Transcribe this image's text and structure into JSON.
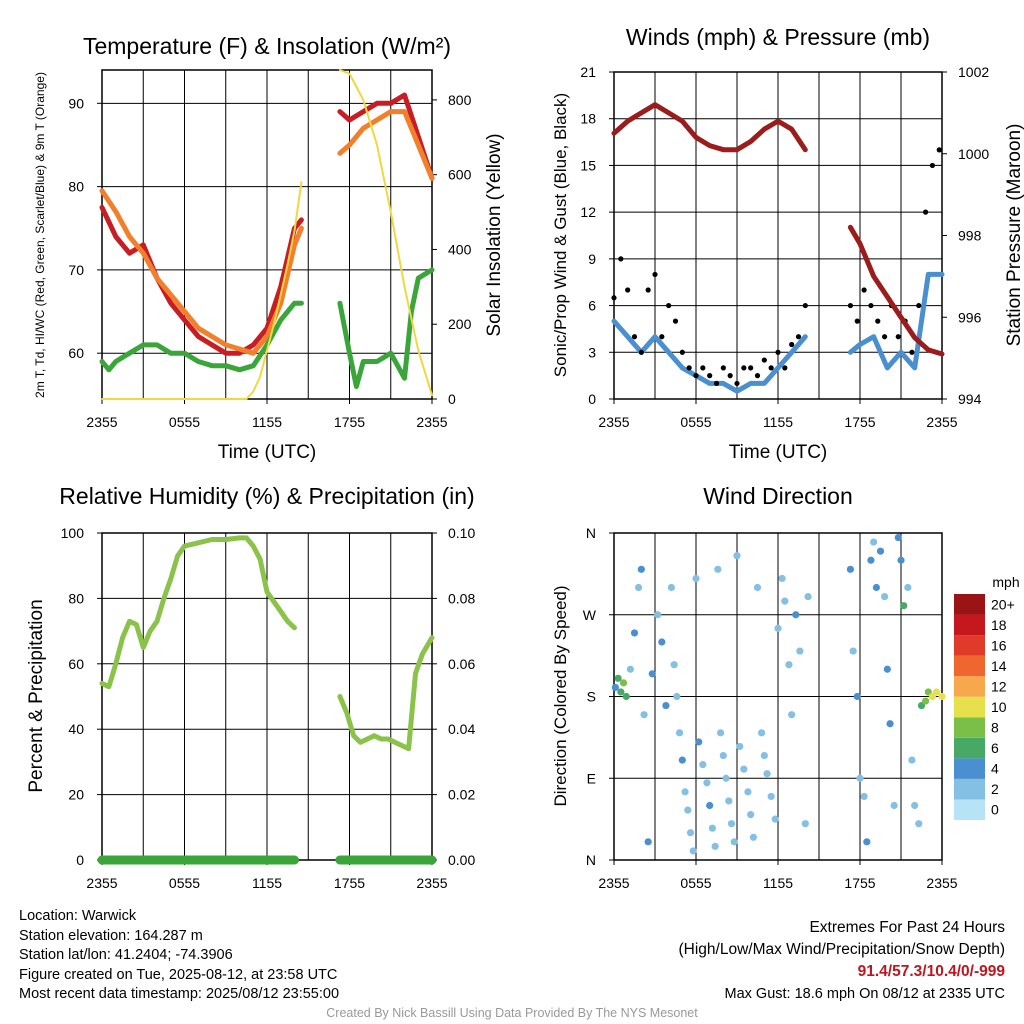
{
  "time_ticks": [
    "2355",
    "0555",
    "1155",
    "1755",
    "2355"
  ],
  "panel_temp": {
    "title": "Temperature (F) & Insolation (W/m²)",
    "xlabel": "Time (UTC)",
    "ylabel_left": "2m T, Td, HI/WC (Red, Green, Scarlet/Blue) & 9m T (Orange)",
    "ylabel_right": "Solar Insolation (Yellow)"
  },
  "panel_wind": {
    "title": "Winds (mph) & Pressure (mb)",
    "xlabel": "Time (UTC)",
    "ylabel_left": "Sonic/Prop Wind & Gust (Blue, Black)",
    "ylabel_right": "Station Pressure (Maroon)"
  },
  "panel_rh": {
    "title": "Relative Humidity (%) & Precipitation (in)",
    "ylabel_left": "Percent & Precipitation"
  },
  "panel_dir": {
    "title": "Wind Direction",
    "ylabel_left": "Direction (Colored By Speed)",
    "colorbar_title": "mph"
  },
  "info": {
    "location": "Location: Warwick",
    "elevation": "Station elevation: 164.287 m",
    "latlon": "Station lat/lon: 41.2404; -74.3906",
    "created": "Figure created on Tue, 2025-08-12, at 23:58 UTC",
    "recent": "Most recent data timestamp: 2025/08/12 23:55:00",
    "extremes_title": "Extremes For Past 24 Hours",
    "extremes_legend": "(High/Low/Max Wind/Precipitation/Snow Depth)",
    "extremes_values": "91.4/57.3/10.4/0/-999",
    "max_gust": "Max Gust: 18.6 mph On 08/12 at 2335 UTC",
    "credit": "Created By Nick Bassill Using Data Provided By The NYS Mesonet"
  },
  "chart_data": [
    {
      "type": "line",
      "title": "Temperature (F) & Insolation (W/m²)",
      "xlabel": "Time (UTC)",
      "ylabel": "2m T, Td, HI/WC (Red, Green, Scarlet/Blue) & 9m T (Orange)",
      "y2label": "Solar Insolation (Yellow)",
      "x_ticks": [
        "2355",
        "0555",
        "1155",
        "1755",
        "2355"
      ],
      "ylim": [
        54.5,
        94
      ],
      "y_ticks": [
        60,
        70,
        80,
        90
      ],
      "y2lim": [
        0,
        880
      ],
      "y2_ticks": [
        0,
        200,
        400,
        600,
        800
      ],
      "grid": true,
      "series": [
        {
          "color": "#c71d23",
          "axis": "left",
          "gaps_after_hour": 14,
          "x": [
            0,
            1,
            2,
            3,
            4,
            5,
            6,
            7,
            8,
            9,
            10,
            11,
            12,
            13,
            14,
            14.5,
            17.3,
            18,
            19,
            20,
            21,
            22,
            23,
            24
          ],
          "y": [
            77.5,
            74,
            72,
            73,
            69,
            66,
            64,
            62,
            61,
            60,
            60,
            61,
            63,
            68,
            75,
            76,
            89,
            88,
            89,
            90,
            90,
            91,
            86,
            81
          ]
        },
        {
          "color": "#f27f2b",
          "axis": "left",
          "gaps_after_hour": 14,
          "x": [
            0,
            1,
            2,
            3,
            4,
            5,
            6,
            7,
            8,
            9,
            10,
            11,
            12,
            13,
            14,
            14.5,
            17.3,
            18,
            19,
            20,
            21,
            22,
            23,
            24
          ],
          "y": [
            79.5,
            77,
            74,
            72,
            69,
            67,
            65,
            63,
            62,
            61,
            60.5,
            60,
            62,
            66,
            73,
            75,
            84,
            85,
            87,
            88,
            89,
            89,
            85,
            81
          ]
        },
        {
          "color": "#3aa63a",
          "axis": "left",
          "gaps_after_hour": 14,
          "x": [
            0,
            0.5,
            1,
            2,
            3,
            4,
            5,
            6,
            7,
            8,
            9,
            10,
            11,
            12,
            13,
            14,
            14.5,
            17.3,
            18,
            18.5,
            19,
            20,
            21,
            22,
            22.5,
            23,
            24
          ],
          "y": [
            59,
            58,
            59,
            60,
            61,
            61,
            60,
            60,
            59,
            58.5,
            58.5,
            58,
            58.5,
            61,
            64,
            66,
            66,
            66,
            60,
            56,
            59,
            59,
            60,
            57,
            65,
            69,
            70
          ]
        },
        {
          "color": "#f0d840",
          "axis": "right",
          "gaps_after_hour": 14,
          "x": [
            0,
            6,
            10.5,
            11,
            11.5,
            12,
            12.5,
            13,
            13.5,
            14,
            14.5,
            17.3,
            18,
            19,
            20,
            21,
            22,
            23,
            24
          ],
          "y": [
            0,
            0,
            0,
            20,
            60,
            130,
            200,
            280,
            360,
            450,
            580,
            880,
            870,
            800,
            680,
            500,
            300,
            130,
            10
          ]
        }
      ]
    },
    {
      "type": "line",
      "title": "Winds (mph) & Pressure (mb)",
      "xlabel": "Time (UTC)",
      "ylabel": "Sonic/Prop Wind & Gust (Blue, Black)",
      "y2label": "Station Pressure (Maroon)",
      "x_ticks": [
        "2355",
        "0555",
        "1155",
        "1755",
        "2355"
      ],
      "ylim": [
        0,
        21
      ],
      "y_ticks": [
        0,
        3,
        6,
        9,
        12,
        15,
        18,
        21
      ],
      "y2lim": [
        994,
        1002
      ],
      "y2_ticks": [
        994,
        996,
        998,
        1000,
        1002
      ],
      "grid": true,
      "series": [
        {
          "color": "#4a90d0",
          "axis": "left",
          "gaps_after_hour": 14,
          "x": [
            0,
            1,
            2,
            3,
            4,
            5,
            6,
            7,
            8,
            9,
            10,
            11,
            12,
            13,
            14,
            17.3,
            18,
            19,
            20,
            21,
            22,
            23,
            24
          ],
          "y": [
            5,
            4,
            3,
            4,
            3,
            2,
            1.5,
            1,
            1,
            0.5,
            1,
            1,
            2,
            3,
            4,
            3,
            3.5,
            4,
            2,
            3,
            2,
            8,
            8
          ]
        },
        {
          "color": "#000000",
          "axis": "left",
          "type": "scatter",
          "gaps_after_hour": 14,
          "x": [
            0,
            0.5,
            1,
            1.5,
            2,
            2.5,
            3,
            3.5,
            4,
            4.5,
            5,
            5.5,
            6,
            6.5,
            7,
            7.5,
            8,
            8.5,
            9,
            9.5,
            10,
            10.5,
            11,
            11.5,
            12,
            12.5,
            13,
            13.5,
            14,
            17.3,
            17.8,
            18.3,
            18.8,
            19.3,
            19.8,
            20.3,
            20.8,
            21.3,
            21.8,
            22.3,
            22.8,
            23.3,
            23.8
          ],
          "y": [
            6.5,
            9,
            7,
            4,
            3,
            7,
            8,
            4,
            6,
            5,
            3,
            2,
            1.5,
            2,
            1.5,
            1,
            2,
            1.5,
            1,
            2,
            2,
            1.5,
            2.5,
            2,
            3,
            2,
            3.5,
            4,
            6,
            6,
            5,
            7,
            6,
            5,
            4,
            6,
            4,
            5,
            3,
            6,
            12,
            15,
            16
          ]
        },
        {
          "color": "#9b1c1c",
          "axis": "right",
          "gaps_after_hour": 14,
          "x": [
            0,
            1,
            2,
            3,
            4,
            5,
            6,
            7,
            8,
            9,
            10,
            11,
            12,
            13,
            14,
            17.3,
            18,
            19,
            20,
            21,
            22,
            23,
            24
          ],
          "y": [
            1000.5,
            1000.8,
            1001,
            1001.2,
            1001,
            1000.8,
            1000.4,
            1000.2,
            1000.1,
            1000.1,
            1000.3,
            1000.6,
            1000.8,
            1000.6,
            1000.1,
            998.2,
            997.8,
            997,
            996.5,
            996,
            995.5,
            995.2,
            995.1
          ]
        }
      ]
    },
    {
      "type": "line",
      "title": "Relative Humidity (%) & Precipitation (in)",
      "ylabel": "Percent & Precipitation",
      "x_ticks": [
        "2355",
        "0555",
        "1155",
        "1755",
        "2355"
      ],
      "ylim": [
        0,
        100
      ],
      "y_ticks": [
        0,
        20,
        40,
        60,
        80,
        100
      ],
      "y2lim": [
        0,
        0.1
      ],
      "y2_ticks": [
        0.0,
        0.02,
        0.04,
        0.06,
        0.08,
        0.1
      ],
      "grid": true,
      "series": [
        {
          "color": "#8bc34a",
          "axis": "left",
          "gaps_after_hour": 14,
          "x": [
            0,
            0.5,
            1,
            1.5,
            2,
            2.5,
            3,
            3.5,
            4,
            4.5,
            5,
            5.5,
            6,
            7,
            8,
            9,
            10,
            10.5,
            11,
            11.5,
            12,
            12.5,
            13,
            13.5,
            14,
            17.3,
            17.8,
            18.3,
            18.8,
            19.3,
            19.8,
            20.3,
            20.8,
            21.3,
            21.8,
            22.3,
            22.8,
            23.3,
            24
          ],
          "y": [
            54,
            53,
            60,
            68,
            73,
            72,
            65,
            70,
            73,
            80,
            86,
            93,
            96,
            97,
            98,
            98,
            98.5,
            98.5,
            96,
            92,
            82,
            79,
            76,
            73,
            71,
            50,
            45,
            38,
            36,
            37,
            38,
            37,
            37,
            36,
            35,
            34,
            57,
            63,
            68
          ]
        },
        {
          "color": "#3aa63a",
          "axis": "left",
          "gaps_after_hour": 14,
          "x": [
            0,
            14,
            17.3,
            24
          ],
          "y": [
            0,
            0,
            0,
            0
          ]
        }
      ]
    },
    {
      "type": "scatter",
      "title": "Wind Direction",
      "ylabel": "Direction (Colored By Speed)",
      "x_ticks": [
        "2355",
        "0555",
        "1155",
        "1755",
        "2355"
      ],
      "y_ticks": [
        "N",
        "E",
        "S",
        "W",
        "N"
      ],
      "ylim": [
        0,
        360
      ],
      "grid": true,
      "colorbar": {
        "title": "mph",
        "labels": [
          "0",
          "2",
          "4",
          "6",
          "8",
          "10",
          "12",
          "14",
          "16",
          "18",
          "20+"
        ],
        "colors": [
          "#b8e2f6",
          "#84bfe4",
          "#4a90d0",
          "#48a866",
          "#7cbf48",
          "#e6e04c",
          "#f8a84c",
          "#f06630",
          "#e03a2a",
          "#c4181e",
          "#9a1416"
        ]
      },
      "points": [
        [
          0.1,
          190,
          4
        ],
        [
          0.3,
          200,
          5
        ],
        [
          0.5,
          185,
          6
        ],
        [
          0.7,
          195,
          7
        ],
        [
          0.9,
          180,
          5
        ],
        [
          1.2,
          210,
          2
        ],
        [
          1.5,
          250,
          3
        ],
        [
          1.8,
          300,
          2
        ],
        [
          2,
          320,
          4
        ],
        [
          2.2,
          160,
          2
        ],
        [
          2.5,
          20,
          4
        ],
        [
          2.8,
          205,
          3
        ],
        [
          3.2,
          270,
          2
        ],
        [
          3.5,
          240,
          3
        ],
        [
          3.8,
          170,
          4
        ],
        [
          4.2,
          300,
          1
        ],
        [
          4.4,
          215,
          2
        ],
        [
          4.6,
          180,
          1
        ],
        [
          4.8,
          140,
          2
        ],
        [
          5,
          110,
          3
        ],
        [
          5.2,
          75,
          1
        ],
        [
          5.4,
          55,
          1
        ],
        [
          5.6,
          30,
          1
        ],
        [
          5.8,
          10,
          2
        ],
        [
          6,
          310,
          2
        ],
        [
          6.2,
          130,
          3
        ],
        [
          6.5,
          105,
          1
        ],
        [
          6.8,
          85,
          2
        ],
        [
          7,
          60,
          3
        ],
        [
          7.2,
          35,
          1
        ],
        [
          7.4,
          15,
          2
        ],
        [
          7.6,
          320,
          1
        ],
        [
          7.8,
          140,
          1
        ],
        [
          8,
          115,
          2
        ],
        [
          8.2,
          90,
          2
        ],
        [
          8.4,
          65,
          1
        ],
        [
          8.6,
          40,
          1
        ],
        [
          8.8,
          20,
          1
        ],
        [
          9,
          335,
          1
        ],
        [
          9.2,
          125,
          2
        ],
        [
          9.5,
          100,
          1
        ],
        [
          9.8,
          75,
          2
        ],
        [
          10,
          50,
          1
        ],
        [
          10.2,
          25,
          2
        ],
        [
          10.5,
          300,
          1
        ],
        [
          10.8,
          140,
          2
        ],
        [
          11,
          115,
          1
        ],
        [
          11.2,
          95,
          2
        ],
        [
          11.5,
          70,
          1
        ],
        [
          11.8,
          45,
          2
        ],
        [
          12,
          255,
          2
        ],
        [
          12.3,
          310,
          1
        ],
        [
          12.5,
          285,
          2
        ],
        [
          12.8,
          215,
          1
        ],
        [
          13,
          160,
          1
        ],
        [
          13.3,
          270,
          3
        ],
        [
          13.6,
          230,
          2
        ],
        [
          14,
          40,
          2
        ],
        [
          14.2,
          290,
          2
        ],
        [
          17.3,
          320,
          3
        ],
        [
          17.5,
          230,
          2
        ],
        [
          17.8,
          180,
          3
        ],
        [
          18,
          90,
          2
        ],
        [
          18.3,
          70,
          2
        ],
        [
          18.5,
          20,
          3
        ],
        [
          18.8,
          330,
          3
        ],
        [
          19,
          350,
          2
        ],
        [
          19.2,
          300,
          4
        ],
        [
          19.5,
          340,
          3
        ],
        [
          19.8,
          290,
          2
        ],
        [
          20,
          210,
          3
        ],
        [
          20.2,
          150,
          3
        ],
        [
          20.5,
          60,
          2
        ],
        [
          20.8,
          355,
          4
        ],
        [
          21,
          330,
          3
        ],
        [
          21.2,
          280,
          6
        ],
        [
          21.5,
          300,
          2
        ],
        [
          21.8,
          110,
          2
        ],
        [
          22,
          60,
          2
        ],
        [
          22.3,
          40,
          1
        ],
        [
          22.5,
          170,
          6
        ],
        [
          22.8,
          175,
          7
        ],
        [
          23,
          185,
          8
        ],
        [
          23.3,
          180,
          9
        ],
        [
          23.6,
          185,
          10
        ],
        [
          24,
          180,
          9
        ]
      ]
    }
  ]
}
